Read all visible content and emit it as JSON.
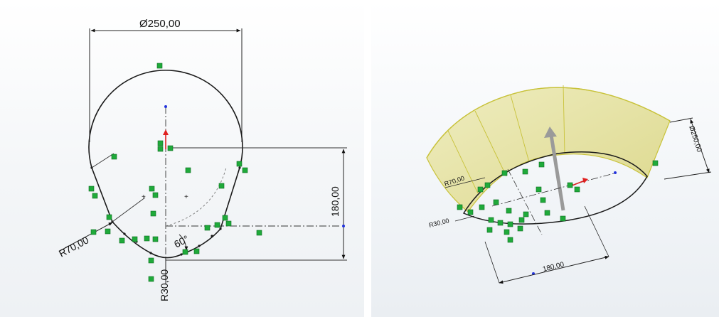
{
  "left_view": {
    "diameter_label": "Ø250,00",
    "height_label": "180,00",
    "radius_large_label": "R70,00",
    "radius_small_label": "R30,00",
    "angle_label": "60°"
  },
  "right_view": {
    "diameter_label": "Ø250,00",
    "width_label": "180,00",
    "radius_large_label": "R70,00",
    "radius_small_label": "R30,00"
  },
  "colors": {
    "sketch_line": "#1a1a1a",
    "relation_icon": "#1faa3a",
    "origin_red": "#e02020",
    "point_blue": "#2233dd",
    "surface_fill": "#e9e6a8",
    "surface_edge": "#c8c23a"
  }
}
